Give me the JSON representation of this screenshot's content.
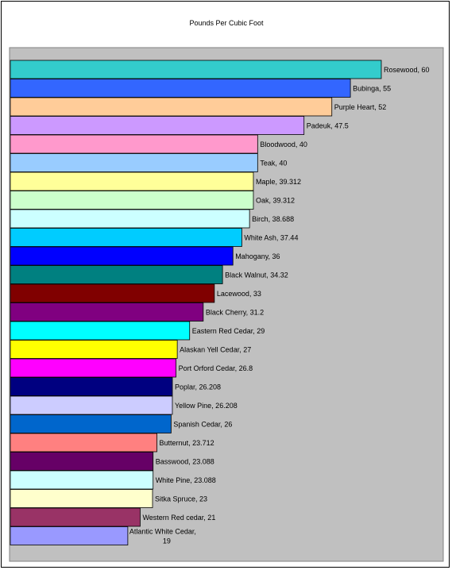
{
  "chart_data": {
    "type": "bar",
    "orientation": "horizontal",
    "title": "Pounds Per Cubic Foot",
    "xlabel": "",
    "ylabel": "",
    "xlim": [
      0,
      60
    ],
    "grid": false,
    "legend": "none",
    "plot_background": "#c0c0c0",
    "categories": [
      "Rosewood",
      "Bubinga",
      "Purple Heart",
      "Padeuk",
      "Bloodwood",
      "Teak",
      "Maple",
      "Oak",
      "Birch",
      "White Ash",
      "Mahogany",
      "Black Walnut",
      "Lacewood",
      "Black Cherry",
      "Eastern Red Cedar",
      "Alaskan Yell Cedar",
      "Port Orford Cedar",
      "Poplar",
      "Yellow Pine",
      "Spanish Cedar",
      "Butternut",
      "Basswood",
      "White Pine",
      "Sitka Spruce",
      "Western Red cedar",
      "Atlantic White Cedar"
    ],
    "values": [
      60,
      55,
      52,
      47.5,
      40,
      40,
      39.312,
      39.312,
      38.688,
      37.44,
      36,
      34.32,
      33,
      31.2,
      29,
      27,
      26.8,
      26.208,
      26.208,
      26,
      23.712,
      23.088,
      23.088,
      23,
      21,
      19
    ],
    "data_labels": [
      "Rosewood, 60",
      "Bubinga, 55",
      "Purple Heart, 52",
      "Padeuk, 47.5",
      "Bloodwood, 40",
      "Teak, 40",
      "Maple, 39.312",
      "Oak, 39.312",
      "Birch, 38.688",
      "White Ash, 37.44",
      "Mahogany, 36",
      "Black Walnut, 34.32",
      "Lacewood, 33",
      "Black Cherry, 31.2",
      "Eastern Red Cedar, 29",
      "Alaskan Yell Cedar, 27",
      "Port Orford Cedar, 26.8",
      "Poplar, 26.208",
      "Yellow Pine, 26.208",
      "Spanish Cedar, 26",
      "Butternut, 23.712",
      "Basswood, 23.088",
      "White Pine, 23.088",
      "Sitka Spruce, 23",
      "Western Red cedar, 21",
      "Atlantic White Cedar, 19"
    ],
    "colors": [
      "#33cccc",
      "#3366ff",
      "#ffcc99",
      "#cc99ff",
      "#ff99cc",
      "#99ccff",
      "#ffff99",
      "#ccffcc",
      "#ccffff",
      "#00ccff",
      "#0000ff",
      "#008080",
      "#800000",
      "#800080",
      "#00ffff",
      "#ffff00",
      "#ff00ff",
      "#000080",
      "#ccccff",
      "#0066cc",
      "#ff8080",
      "#660066",
      "#ccffff",
      "#ffffcc",
      "#993366",
      "#9999ff"
    ]
  }
}
